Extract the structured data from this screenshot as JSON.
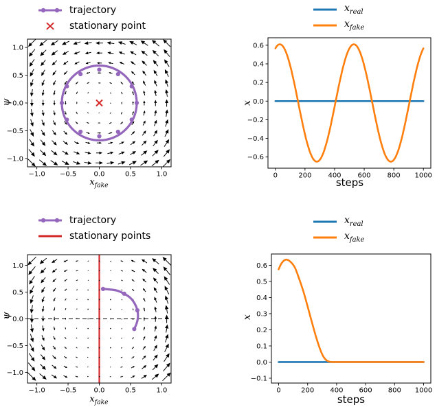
{
  "colors": {
    "trajectory": "#9467bd",
    "stationary": "#d62728",
    "x_real": "#1f77b4",
    "x_fake": "#ff7f0e",
    "arrows": "#000000",
    "background": "#ffffff"
  },
  "chart_data": [
    {
      "id": "phase-portrait-oscillating",
      "type": "quiver+trajectory",
      "xlabel": {
        "base": "x",
        "sub": "fake"
      },
      "ylabel": "ψ",
      "xlim": [
        -1.15,
        1.15
      ],
      "ylim": [
        -1.15,
        1.15
      ],
      "xticks": {
        "values": [
          -1,
          -0.5,
          0,
          0.5,
          1
        ],
        "labels": [
          "−1.0",
          "−0.5",
          "0.0",
          "0.5",
          "1.0"
        ]
      },
      "yticks": {
        "values": [
          -1,
          -0.5,
          0,
          0.5,
          1
        ],
        "labels": [
          "−1.0",
          "−0.5",
          "0.0",
          "0.5",
          "1.0"
        ]
      },
      "quiver": {
        "field": "rotation",
        "grid_n": 13,
        "extent": [
          -1.08,
          1.08
        ],
        "scale": 0.11
      },
      "trajectory": {
        "shape": "circle",
        "center": [
          0,
          0
        ],
        "radius": 0.6,
        "marker_step_deg": 30
      },
      "stationary": {
        "shape": "point",
        "at": [
          0,
          0
        ]
      },
      "legend": [
        {
          "label": "trajectory",
          "swatch": "line-markers",
          "color": "#9467bd"
        },
        {
          "label": "stationary point",
          "swatch": "x-marker",
          "color": "#d62728"
        }
      ]
    },
    {
      "id": "x-vs-steps-oscillating",
      "type": "line",
      "xlabel": "steps",
      "ylabel": {
        "base": "x"
      },
      "xlim": [
        -50,
        1050
      ],
      "ylim": [
        -0.72,
        0.68
      ],
      "xticks": {
        "values": [
          0,
          200,
          400,
          600,
          800,
          1000
        ],
        "labels": [
          "0",
          "200",
          "400",
          "600",
          "800",
          "1000"
        ]
      },
      "yticks": {
        "values": [
          -0.6,
          -0.4,
          -0.2,
          0,
          0.2,
          0.4,
          0.6
        ],
        "labels": [
          "−0.6",
          "−0.4",
          "−0.2",
          "0.0",
          "0.2",
          "0.4",
          "0.6"
        ]
      },
      "series": [
        {
          "base": "x",
          "sub": "real",
          "color": "#1f77b4",
          "model": "constant",
          "value": 0,
          "x_range": [
            0,
            1000
          ]
        },
        {
          "base": "x",
          "sub": "fake",
          "color": "#ff7f0e",
          "model": "cosine",
          "amplitude": 0.63,
          "offset": -0.02,
          "period": 500,
          "peak_at": 30,
          "x_range": [
            0,
            1000
          ]
        }
      ],
      "legend": [
        {
          "base": "x",
          "sub": "real",
          "swatch": "line",
          "color": "#1f77b4"
        },
        {
          "base": "x",
          "sub": "fake",
          "swatch": "line",
          "color": "#ff7f0e"
        }
      ]
    },
    {
      "id": "phase-portrait-converging",
      "type": "quiver+trajectory",
      "xlabel": {
        "base": "x",
        "sub": "fake"
      },
      "ylabel": "ψ",
      "xlim": [
        -1.15,
        1.15
      ],
      "ylim": [
        -1.2,
        1.2
      ],
      "xticks": {
        "values": [
          -1,
          -0.5,
          0,
          0.5,
          1
        ],
        "labels": [
          "−1.0",
          "−0.5",
          "0.0",
          "0.5",
          "1.0"
        ]
      },
      "yticks": {
        "values": [
          -1,
          -0.5,
          0,
          0.5,
          1
        ],
        "labels": [
          "−1.0",
          "−0.5",
          "0.0",
          "0.5",
          "1.0"
        ]
      },
      "quiver": {
        "field": "damped_rotation",
        "grid_n": 13,
        "extent": [
          -1.08,
          1.08
        ],
        "scale": 0.115
      },
      "zero_hline_dashed": true,
      "trajectory": {
        "shape": "path",
        "points": [
          [
            0.56,
            -0.19
          ],
          [
            0.6,
            -0.08
          ],
          [
            0.62,
            0.04
          ],
          [
            0.61,
            0.16
          ],
          [
            0.57,
            0.28
          ],
          [
            0.5,
            0.39
          ],
          [
            0.4,
            0.47
          ],
          [
            0.28,
            0.53
          ],
          [
            0.16,
            0.55
          ],
          [
            0.06,
            0.56
          ]
        ],
        "marker_indices": [
          0,
          3,
          6,
          9
        ]
      },
      "stationary": {
        "shape": "vline",
        "x": 0
      },
      "legend": [
        {
          "label": "trajectory",
          "swatch": "line-markers",
          "color": "#9467bd"
        },
        {
          "label": "stationary points",
          "swatch": "line",
          "color": "#d62728"
        }
      ]
    },
    {
      "id": "x-vs-steps-converging",
      "type": "line",
      "xlabel": "steps",
      "ylabel": {
        "base": "x"
      },
      "xlim": [
        -50,
        1050
      ],
      "ylim": [
        -0.13,
        0.67
      ],
      "xticks": {
        "values": [
          0,
          200,
          400,
          600,
          800,
          1000
        ],
        "labels": [
          "0",
          "200",
          "400",
          "600",
          "800",
          "1000"
        ]
      },
      "yticks": {
        "values": [
          -0.1,
          0,
          0.1,
          0.2,
          0.3,
          0.4,
          0.5,
          0.6
        ],
        "labels": [
          "−0.1",
          "0.0",
          "0.1",
          "0.2",
          "0.3",
          "0.4",
          "0.5",
          "0.6"
        ]
      },
      "series": [
        {
          "base": "x",
          "sub": "real",
          "color": "#1f77b4",
          "model": "constant",
          "value": 0,
          "x_range": [
            0,
            1000
          ]
        },
        {
          "base": "x",
          "sub": "fake",
          "color": "#ff7f0e",
          "model": "keypoints",
          "points": [
            [
              0,
              0.575
            ],
            [
              15,
              0.605
            ],
            [
              35,
              0.628
            ],
            [
              55,
              0.635
            ],
            [
              80,
              0.623
            ],
            [
              110,
              0.59
            ],
            [
              140,
              0.52
            ],
            [
              170,
              0.44
            ],
            [
              200,
              0.345
            ],
            [
              230,
              0.245
            ],
            [
              260,
              0.15
            ],
            [
              285,
              0.082
            ],
            [
              305,
              0.04
            ],
            [
              325,
              0.015
            ],
            [
              345,
              0.004
            ],
            [
              370,
              0
            ],
            [
              450,
              0
            ],
            [
              600,
              0
            ],
            [
              800,
              0
            ],
            [
              1000,
              0
            ]
          ]
        }
      ],
      "legend": [
        {
          "base": "x",
          "sub": "real",
          "swatch": "line",
          "color": "#1f77b4"
        },
        {
          "base": "x",
          "sub": "fake",
          "swatch": "line",
          "color": "#ff7f0e"
        }
      ]
    }
  ]
}
